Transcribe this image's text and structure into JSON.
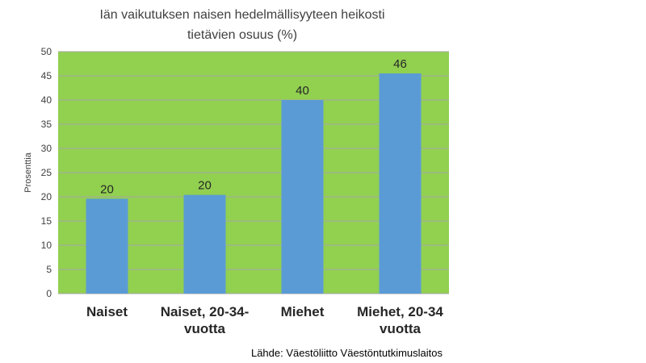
{
  "colors": {
    "plot_background": "#92d050",
    "bar_fill": "#5b9bd5",
    "gridline": "#a6a6a6"
  },
  "chart_data": {
    "type": "bar",
    "title_lines": [
      "Iän vaikutuksen naisen hedelmällisyyteen heikosti",
      "tietävien osuus (%)"
    ],
    "categories": [
      "Naiset",
      "Naiset, 20-34-vuotta",
      "Miehet",
      "Miehet, 20-34 vuotta"
    ],
    "category_label_lines": [
      [
        "Naiset"
      ],
      [
        "Naiset, 20-34-",
        "vuotta"
      ],
      [
        "Miehet"
      ],
      [
        "Miehet, 20-34",
        "vuotta"
      ]
    ],
    "values": [
      19.6,
      20.4,
      40,
      45.5
    ],
    "data_labels": [
      "20",
      "20",
      "40",
      "46"
    ],
    "ylabel": "Prosenttia",
    "ylim": [
      0,
      50
    ],
    "yticks": [
      0,
      5,
      10,
      15,
      20,
      25,
      30,
      35,
      40,
      45,
      50
    ],
    "grid": true,
    "legend": "none",
    "source": "Lähde: Väestöliitto Väestöntutkimuslaitos"
  }
}
